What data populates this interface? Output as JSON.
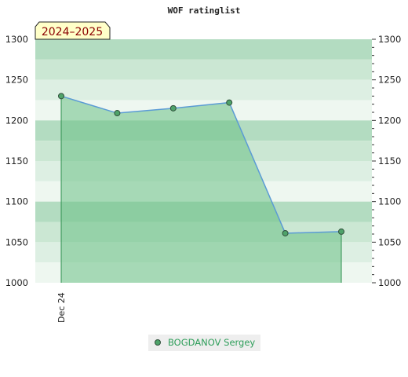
{
  "chart_data": {
    "type": "area",
    "title": "WOF ratinglist",
    "season_label": "2024–2025",
    "ylim": [
      1000,
      1300
    ],
    "y_ticks": [
      1000,
      1050,
      1100,
      1150,
      1200,
      1250,
      1300
    ],
    "x_tick_labels": [
      "Dec 24"
    ],
    "grid": true,
    "legend_position": "bottom-center",
    "series": [
      {
        "name": "BOGDANOV Sergey",
        "values": [
          1230,
          1209,
          1215,
          1222,
          1061,
          1063
        ]
      }
    ],
    "colors": {
      "line": "#5b9bd5",
      "area_fill": "#6cc187",
      "marker_fill": "#4fa36a",
      "marker_stroke": "#2f4f3a",
      "band_dark": "#b3dcc1",
      "band_mid": "#cbe7d3",
      "band_light": "#ddefe3",
      "band_lightest": "#eef7f0",
      "season_bg": "#ffffc8",
      "legend_text": "#2e9e5a",
      "legend_bg": "#eeeeee"
    }
  }
}
